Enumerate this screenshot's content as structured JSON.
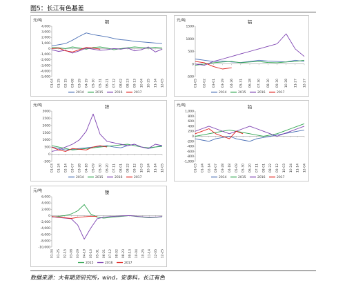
{
  "figure": {
    "title": "图5：长江有色基差",
    "source": "数据来源：大有期货研究所，wind，安泰科，长江有色"
  },
  "colors": {
    "2014": "#4a6fb5",
    "2015": "#2ea44f",
    "2016": "#7b3fb0",
    "2017": "#e0201b"
  },
  "chart_data": [
    {
      "type": "line",
      "title": "铜",
      "ylabel": "元/吨",
      "ylim": [
        -5000,
        4000
      ],
      "yticks": [
        "4,000",
        "3,000",
        "2,000",
        "1,000",
        "0",
        "-1,000",
        "-2,000",
        "-3,000",
        "-4,000",
        "-5,000"
      ],
      "yvalues": [
        4000,
        3000,
        2000,
        1000,
        0,
        -1000,
        -2000,
        -3000,
        -4000,
        -5000
      ],
      "xticks": [
        "01-04",
        "01-25",
        "02-15",
        "03-08",
        "03-29",
        "04-19",
        "05-10",
        "05-31",
        "06-21",
        "07-12",
        "08-02",
        "08-23",
        "09-13",
        "10-04",
        "10-25",
        "11-14",
        "12-05"
      ],
      "series": [
        {
          "name": "2014",
          "values": [
            500,
            700,
            900,
            1500,
            2200,
            2800,
            2500,
            2300,
            2100,
            1800,
            1600,
            1500,
            1300,
            1200,
            1100,
            1000,
            900
          ]
        },
        {
          "name": "2015",
          "values": [
            200,
            150,
            0,
            300,
            100,
            -100,
            200,
            300,
            100,
            -200,
            0,
            150,
            300,
            200,
            100,
            250,
            100
          ]
        },
        {
          "name": "2016",
          "values": [
            -200,
            -500,
            -300,
            -800,
            -400,
            100,
            -100,
            -300,
            -200,
            0,
            -100,
            100,
            -400,
            -200,
            300,
            -600,
            -100
          ]
        },
        {
          "name": "2017",
          "values": [
            0,
            100,
            -400,
            -600,
            -200,
            200,
            100,
            -100,
            null,
            null,
            null,
            null,
            null,
            null,
            null,
            null,
            null
          ]
        }
      ]
    },
    {
      "type": "line",
      "title": "铝",
      "ylabel": "元/吨",
      "ylim": [
        -500,
        1500
      ],
      "yticks": [
        "1500",
        "1000",
        "500",
        "0",
        "-500"
      ],
      "yvalues": [
        1500,
        1000,
        500,
        0,
        -500
      ],
      "xticks": [
        "01-05",
        "02-02",
        "03-01",
        "03-29",
        "04-26",
        "05-31",
        "06-28",
        "07-30",
        "08-30",
        "09-30",
        "10-28",
        "11-27",
        "12-27"
      ],
      "series": [
        {
          "name": "2014",
          "values": [
            200,
            150,
            100,
            120,
            80,
            60,
            100,
            150,
            120,
            100,
            80,
            150,
            100
          ]
        },
        {
          "name": "2015",
          "values": [
            -50,
            0,
            50,
            80,
            100,
            50,
            80,
            100,
            60,
            50,
            80,
            100,
            150
          ]
        },
        {
          "name": "2016",
          "values": [
            0,
            -50,
            100,
            200,
            300,
            400,
            500,
            600,
            700,
            800,
            1200,
            600,
            300
          ]
        },
        {
          "name": "2017",
          "values": [
            100,
            50,
            -100,
            -200,
            -150,
            null,
            null,
            null,
            null,
            null,
            null,
            null,
            null
          ]
        }
      ]
    },
    {
      "type": "line",
      "title": "锌",
      "ylabel": "元/吨",
      "ylim": [
        -500,
        3000
      ],
      "yticks": [
        "3000",
        "2500",
        "2000",
        "1500",
        "1000",
        "500",
        "0",
        "-500"
      ],
      "yvalues": [
        3000,
        2500,
        2000,
        1500,
        1000,
        500,
        0,
        -500
      ],
      "xticks": [
        "01-03",
        "01-24",
        "02-14",
        "03-07",
        "03-28",
        "04-18",
        "05-09",
        "05-30",
        "06-20",
        "07-11",
        "08-01",
        "08-22",
        "09-12",
        "10-03",
        "10-24",
        "11-14",
        "12-05"
      ],
      "series": [
        {
          "name": "2014",
          "values": [
            500,
            400,
            300,
            350,
            400,
            450,
            500,
            550,
            600,
            500,
            450,
            600,
            700,
            500,
            400,
            500,
            600
          ]
        },
        {
          "name": "2015",
          "values": [
            600,
            500,
            400,
            300,
            350,
            400,
            450,
            500,
            550,
            600,
            650,
            700,
            600,
            500,
            450,
            500,
            550
          ]
        },
        {
          "name": "2016",
          "values": [
            200,
            300,
            500,
            700,
            1000,
            1600,
            2800,
            1400,
            900,
            800,
            700,
            600,
            700,
            500,
            400,
            700,
            600
          ]
        },
        {
          "name": "2017",
          "values": [
            500,
            300,
            200,
            400,
            350,
            300,
            500,
            600,
            500,
            null,
            null,
            null,
            null,
            null,
            null,
            null,
            null
          ]
        }
      ]
    },
    {
      "type": "line",
      "title": "铅",
      "ylabel": "元/吨",
      "ylim": [
        -1000,
        1000
      ],
      "yticks": [
        "1,000",
        "800",
        "600",
        "400",
        "200",
        "0",
        "-200",
        "-400",
        "-600",
        "-800",
        "-1,000"
      ],
      "yvalues": [
        1000,
        800,
        600,
        400,
        200,
        0,
        -200,
        -400,
        -600,
        -800,
        -1000
      ],
      "xticks": [
        "01-03",
        "01-24",
        "02-14",
        "03-07",
        "03-28",
        "04-18",
        "05-09",
        "05-30",
        "06-20",
        "07-11",
        "08-01",
        "08-22",
        "09-12",
        "10-03",
        "10-24",
        "11-14",
        "12-04"
      ],
      "series": [
        {
          "name": "2014",
          "values": [
            -100,
            -150,
            -200,
            -100,
            -50,
            0,
            -100,
            -150,
            -200,
            -100,
            -50,
            0,
            50,
            100,
            150,
            200,
            250
          ]
        },
        {
          "name": "2015",
          "values": [
            0,
            50,
            100,
            150,
            200,
            250,
            200,
            150,
            100,
            50,
            0,
            50,
            100,
            200,
            300,
            400,
            500
          ]
        },
        {
          "name": "2016",
          "values": [
            200,
            300,
            400,
            300,
            200,
            100,
            200,
            300,
            400,
            300,
            200,
            100,
            0,
            100,
            200,
            300,
            400
          ]
        },
        {
          "name": "2017",
          "values": [
            100,
            200,
            300,
            100,
            0,
            -100,
            200,
            100,
            null,
            null,
            null,
            null,
            null,
            null,
            null,
            null,
            null
          ]
        }
      ]
    },
    {
      "type": "line",
      "title": "镍",
      "ylabel": "元/吨",
      "ylim": [
        -10000,
        6000
      ],
      "yticks": [
        "6,000",
        "4,000",
        "2,000",
        "0",
        "-2,000",
        "-4,000",
        "-6,000",
        "-8,000",
        "-10,000"
      ],
      "yvalues": [
        6000,
        4000,
        2000,
        0,
        -2000,
        -4000,
        -6000,
        -8000,
        -10000
      ],
      "xticks": [
        "01-04",
        "01-25",
        "02-15",
        "03-08",
        "03-29",
        "04-19",
        "05-10",
        "05-31",
        "06-21",
        "07-12",
        "08-02",
        "08-23",
        "09-13",
        "10-04",
        "10-25",
        "11-14",
        "12-05",
        "12-25"
      ],
      "series": [
        {
          "name": "2015",
          "values": [
            -500,
            -300,
            0,
            500,
            1500,
            3500,
            500,
            -500,
            -800,
            -600,
            -400,
            -200,
            0,
            -300,
            -500,
            -700,
            -600,
            -400
          ]
        },
        {
          "name": "2016",
          "values": [
            -400,
            -600,
            -800,
            -1000,
            -3000,
            -7500,
            -4000,
            -1000,
            -500,
            -300,
            -200,
            -100,
            0,
            -200,
            -400,
            -600,
            -500,
            -300
          ]
        },
        {
          "name": "2017",
          "values": [
            -300,
            -500,
            -700,
            -900,
            -600,
            -400,
            -200,
            -300,
            null,
            null,
            null,
            null,
            null,
            null,
            null,
            null,
            null,
            null
          ]
        }
      ]
    }
  ]
}
